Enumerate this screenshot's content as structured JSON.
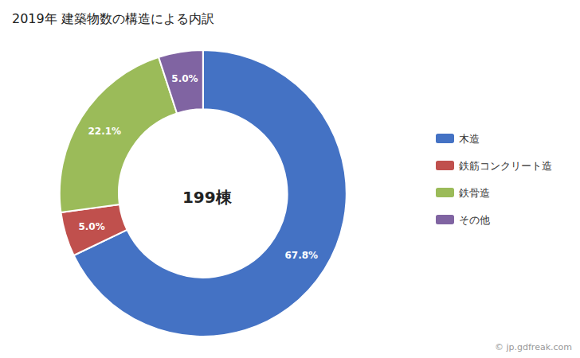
{
  "chart_data": {
    "type": "pie",
    "title": "2019年 建築物数の構造による内訳",
    "categories": [
      "木造",
      "鉄筋コンクリート造",
      "鉄骨造",
      "その他"
    ],
    "values": [
      67.8,
      5.0,
      22.1,
      5.0
    ],
    "value_labels": [
      "67.8%",
      "5.0%",
      "22.1%",
      "5.0%"
    ],
    "colors": [
      "#4472C4",
      "#C0504D",
      "#9BBB59",
      "#8064A2"
    ],
    "data_labels": true,
    "legend": "right",
    "annotations": [
      "199棟",
      "© jp.gdfreak.com"
    ]
  }
}
